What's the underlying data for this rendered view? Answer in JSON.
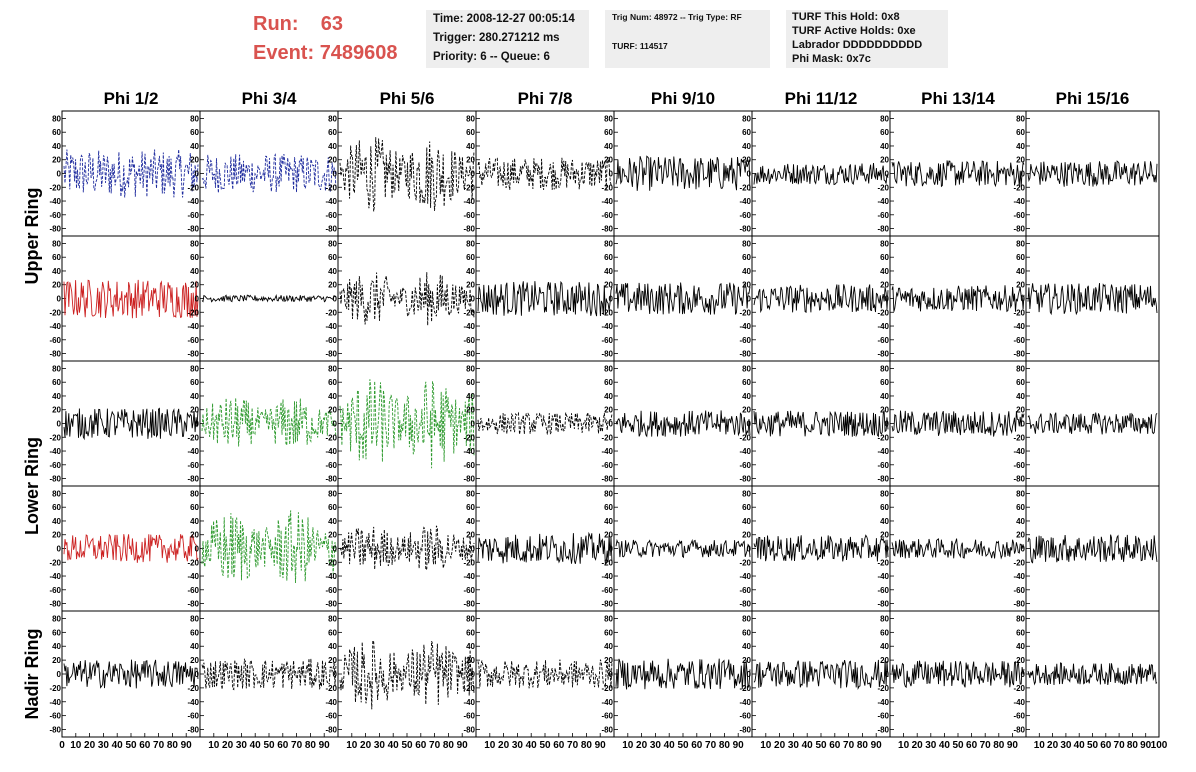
{
  "header": {
    "run_label": "Run:",
    "run_value": "63",
    "event_label": "Event:",
    "event_value": "7489608",
    "time": "Time: 2008-12-27 00:05:14",
    "trigger": "Trigger: 280.271212 ms",
    "priority": "Priority: 6 -- Queue: 6",
    "trig_num": "Trig Num: 48972 -- Trig Type: RF",
    "turf": "TURF: 114517",
    "turf_this_hold": "TURF This Hold: 0x8",
    "turf_active_holds": "TURF Active Holds: 0xe",
    "labrador": "Labrador DDDDDDDDDD",
    "phi_mask": "Phi Mask: 0x7c"
  },
  "chart_data": {
    "type": "line",
    "columns": [
      "Phi 1/2",
      "Phi 3/4",
      "Phi 5/6",
      "Phi 7/8",
      "Phi 9/10",
      "Phi 11/12",
      "Phi 13/14",
      "Phi 15/16"
    ],
    "row_groups": [
      "Upper Ring",
      "Lower Ring",
      "Nadir Ring"
    ],
    "rows_per_group": [
      2,
      2,
      1
    ],
    "ylim": [
      -85,
      85
    ],
    "yticks": [
      -80,
      -60,
      -40,
      -20,
      0,
      20,
      40,
      60,
      80
    ],
    "xlim": [
      0,
      100
    ],
    "xticks_first": [
      0,
      10,
      20,
      30,
      40,
      50,
      60,
      70,
      80,
      90
    ],
    "xticks_rest": [
      10,
      20,
      30,
      40,
      50,
      60,
      70,
      80,
      90
    ],
    "last_tick": "100",
    "panels": [
      [
        {
          "c": "#1e2b9e",
          "d": 1,
          "a": 22,
          "e": "flat"
        },
        {
          "c": "#1e2b9e",
          "d": 1,
          "a": 18,
          "e": "flat"
        },
        {
          "c": "#000000",
          "d": 1,
          "a": 35,
          "e": "burst"
        },
        {
          "c": "#000000",
          "d": 1,
          "a": 15,
          "e": "flat"
        },
        {
          "c": "#000000",
          "d": 0,
          "a": 16,
          "e": "flat"
        },
        {
          "c": "#000000",
          "d": 0,
          "a": 10,
          "e": "flat"
        },
        {
          "c": "#000000",
          "d": 0,
          "a": 12,
          "e": "flat"
        },
        {
          "c": "#000000",
          "d": 0,
          "a": 12,
          "e": "flat"
        }
      ],
      [
        {
          "c": "#cc2222",
          "d": 0,
          "a": 18,
          "e": "flat"
        },
        {
          "c": "#000000",
          "d": 0,
          "a": 3,
          "e": "flat"
        },
        {
          "c": "#000000",
          "d": 1,
          "a": 25,
          "e": "burst"
        },
        {
          "c": "#000000",
          "d": 0,
          "a": 16,
          "e": "flat"
        },
        {
          "c": "#000000",
          "d": 0,
          "a": 15,
          "e": "flat"
        },
        {
          "c": "#000000",
          "d": 0,
          "a": 13,
          "e": "flat"
        },
        {
          "c": "#000000",
          "d": 0,
          "a": 12,
          "e": "flat"
        },
        {
          "c": "#000000",
          "d": 0,
          "a": 14,
          "e": "flat"
        }
      ],
      [
        {
          "c": "#000000",
          "d": 0,
          "a": 14,
          "e": "flat"
        },
        {
          "c": "#2e9a2e",
          "d": 1,
          "a": 25,
          "e": "burst"
        },
        {
          "c": "#2e9a2e",
          "d": 1,
          "a": 42,
          "e": "burst"
        },
        {
          "c": "#000000",
          "d": 1,
          "a": 10,
          "e": "flat"
        },
        {
          "c": "#000000",
          "d": 0,
          "a": 12,
          "e": "flat"
        },
        {
          "c": "#000000",
          "d": 0,
          "a": 12,
          "e": "flat"
        },
        {
          "c": "#000000",
          "d": 0,
          "a": 12,
          "e": "flat"
        },
        {
          "c": "#000000",
          "d": 0,
          "a": 10,
          "e": "flat"
        }
      ],
      [
        {
          "c": "#cc2222",
          "d": 0,
          "a": 13,
          "e": "flat"
        },
        {
          "c": "#2e9a2e",
          "d": 1,
          "a": 35,
          "e": "burst"
        },
        {
          "c": "#000000",
          "d": 1,
          "a": 22,
          "e": "burst"
        },
        {
          "c": "#000000",
          "d": 0,
          "a": 14,
          "e": "flat"
        },
        {
          "c": "#000000",
          "d": 0,
          "a": 8,
          "e": "flat"
        },
        {
          "c": "#000000",
          "d": 0,
          "a": 12,
          "e": "flat"
        },
        {
          "c": "#000000",
          "d": 0,
          "a": 9,
          "e": "flat"
        },
        {
          "c": "#000000",
          "d": 0,
          "a": 13,
          "e": "flat"
        }
      ],
      [
        {
          "c": "#000000",
          "d": 0,
          "a": 13,
          "e": "flat"
        },
        {
          "c": "#000000",
          "d": 1,
          "a": 14,
          "e": "flat"
        },
        {
          "c": "#000000",
          "d": 1,
          "a": 32,
          "e": "burst"
        },
        {
          "c": "#000000",
          "d": 1,
          "a": 13,
          "e": "flat"
        },
        {
          "c": "#000000",
          "d": 0,
          "a": 14,
          "e": "flat"
        },
        {
          "c": "#000000",
          "d": 0,
          "a": 13,
          "e": "flat"
        },
        {
          "c": "#000000",
          "d": 0,
          "a": 12,
          "e": "flat"
        },
        {
          "c": "#000000",
          "d": 0,
          "a": 10,
          "e": "flat"
        }
      ]
    ]
  }
}
